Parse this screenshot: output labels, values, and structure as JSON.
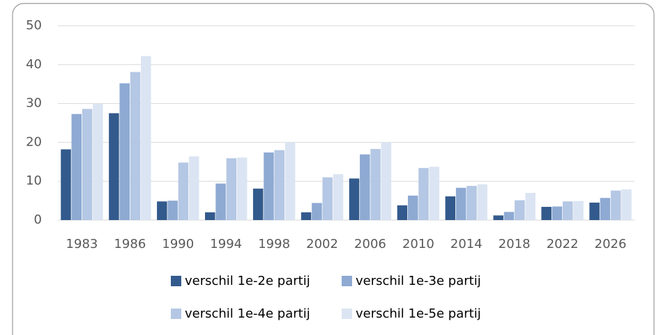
{
  "chart_data": {
    "type": "bar",
    "categories": [
      "1983",
      "1986",
      "1990",
      "1994",
      "1998",
      "2002",
      "2006",
      "2010",
      "2014",
      "2018",
      "2022",
      "2026"
    ],
    "series": [
      {
        "name": "verschil 1e-2e partij",
        "color": "#335a8c",
        "values": [
          18.2,
          27.5,
          4.8,
          2.0,
          8.1,
          2.0,
          10.7,
          3.8,
          6.1,
          1.2,
          3.4,
          4.5
        ]
      },
      {
        "name": "verschil 1e-3e partij",
        "color": "#8eaad3",
        "values": [
          27.3,
          35.2,
          5.0,
          9.4,
          17.4,
          4.4,
          16.9,
          6.3,
          8.3,
          2.1,
          3.5,
          5.7
        ]
      },
      {
        "name": "verschil 1e-4e partij",
        "color": "#b4c7e4",
        "values": [
          28.6,
          38.1,
          14.8,
          15.9,
          18.0,
          11.0,
          18.3,
          13.4,
          8.8,
          5.1,
          4.8,
          7.6
        ]
      },
      {
        "name": "verschil 1e-5e partij",
        "color": "#dbe4f2",
        "values": [
          29.9,
          42.2,
          16.4,
          16.1,
          20.0,
          11.8,
          20.0,
          13.7,
          9.2,
          7.0,
          4.9,
          7.9
        ]
      }
    ],
    "ylim": [
      0,
      50
    ],
    "yticks": [
      0,
      10,
      20,
      30,
      40,
      50
    ],
    "grid": true,
    "legend": "bottom"
  }
}
